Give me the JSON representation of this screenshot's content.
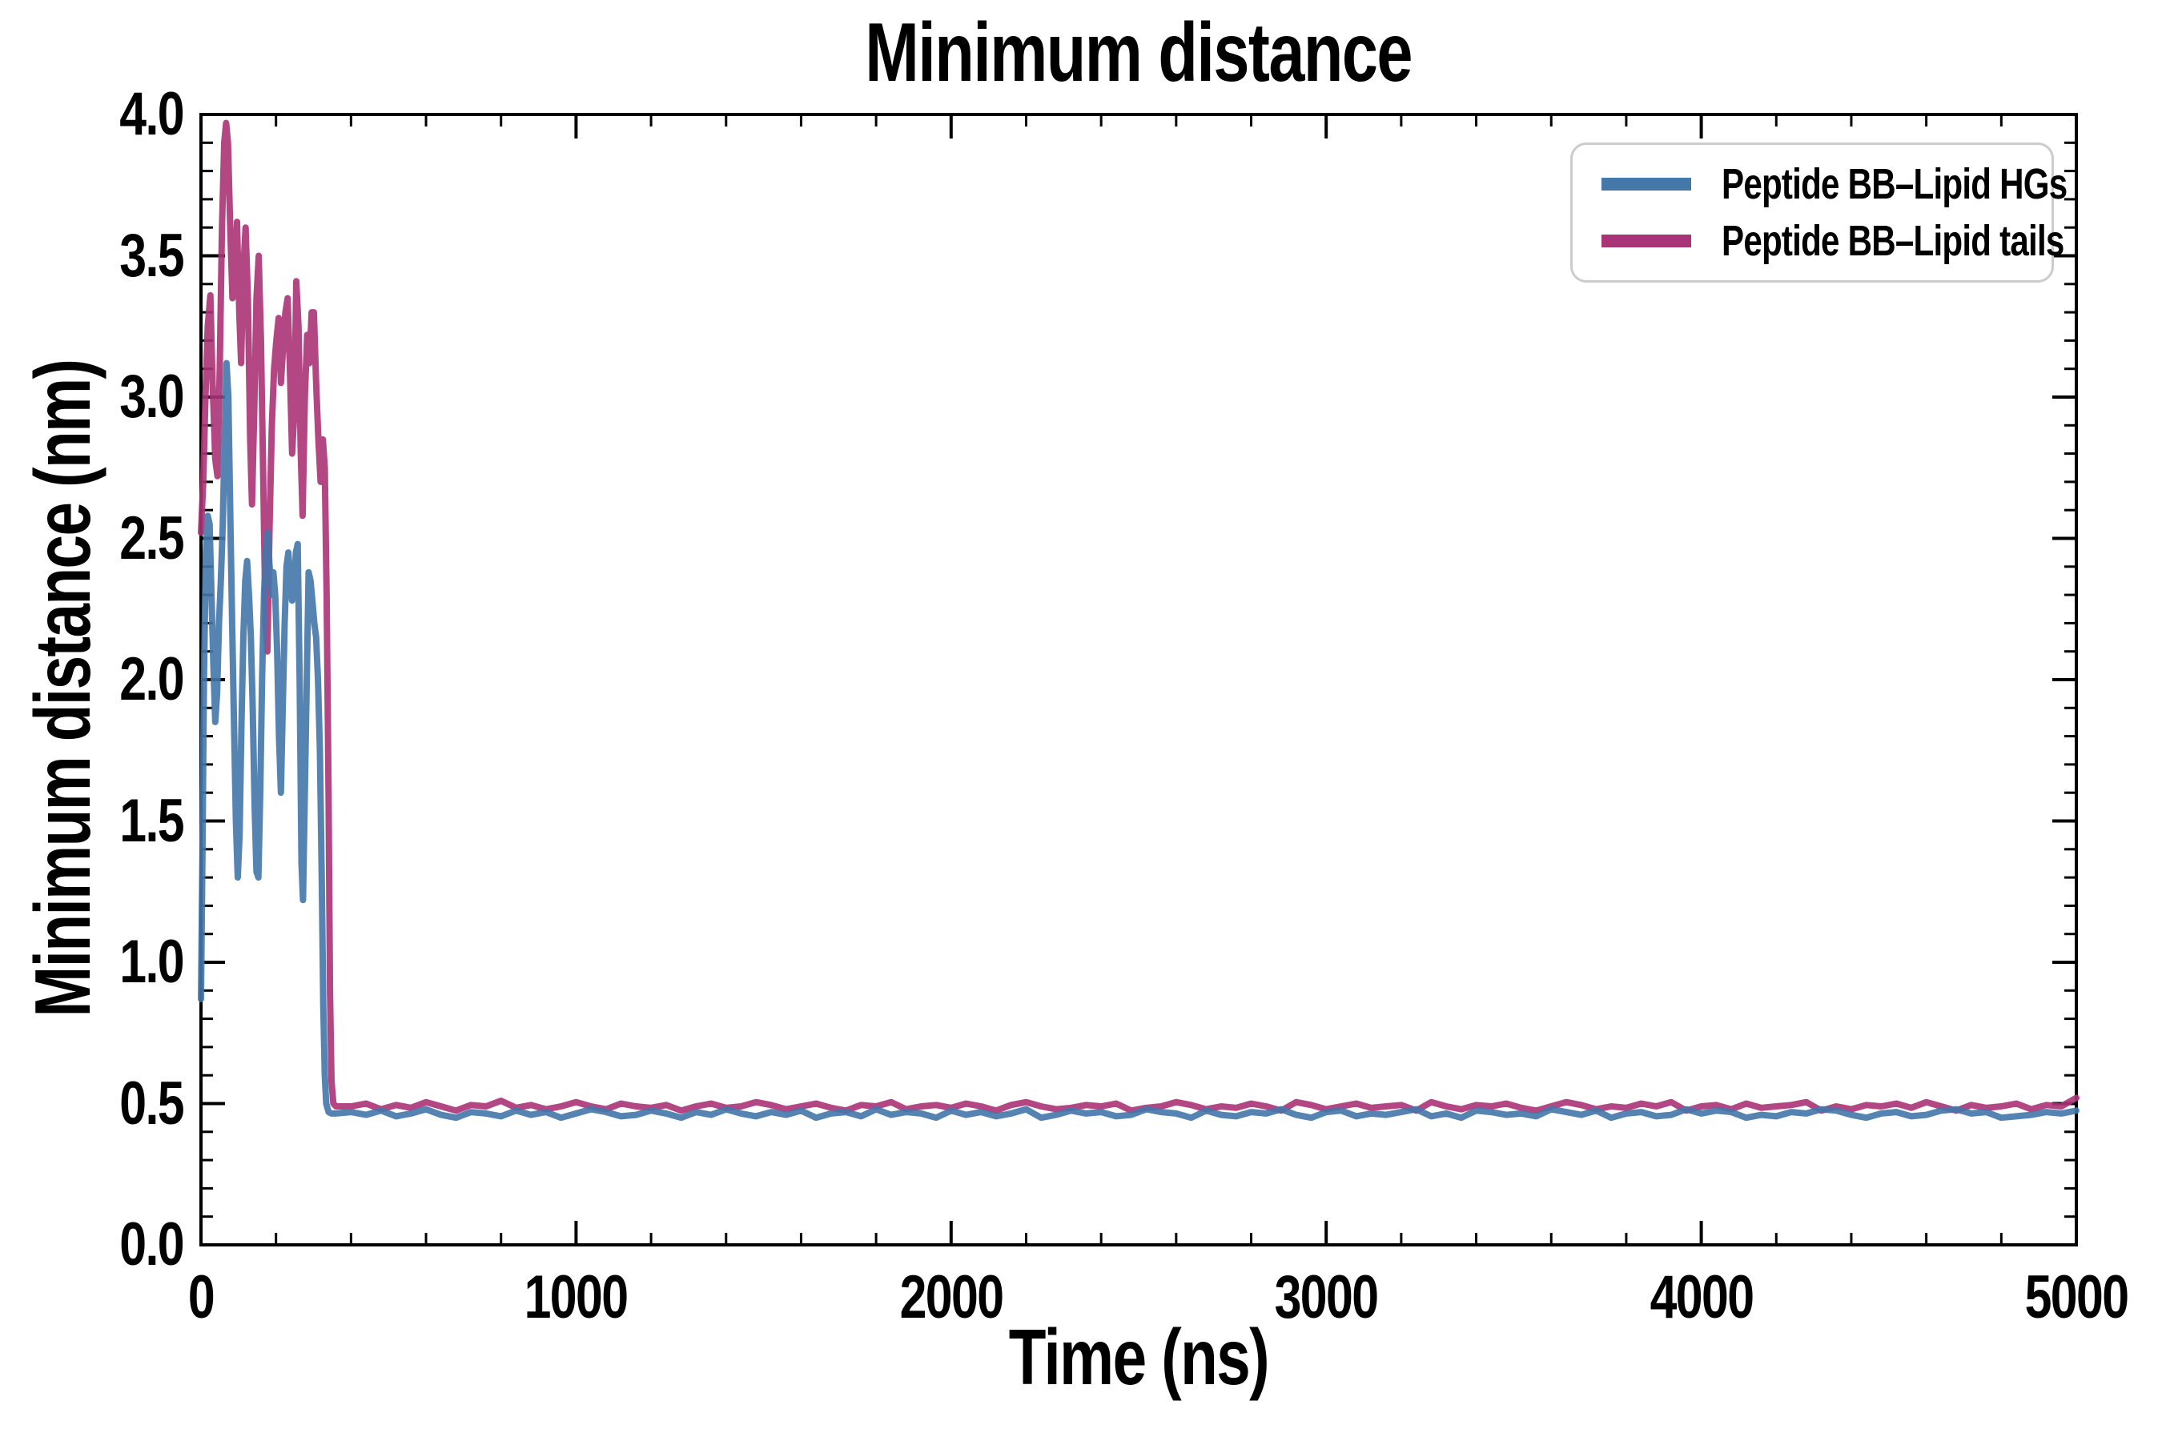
{
  "figure": {
    "background": "#ffffff"
  },
  "chart_data": {
    "type": "line",
    "title": "Minimum distance",
    "xlabel": "Time (ns)",
    "ylabel": "Minimum distance (nm)",
    "xlim": [
      0,
      5000
    ],
    "ylim": [
      0.0,
      4.0
    ],
    "xticks": [
      0,
      1000,
      2000,
      3000,
      4000,
      5000
    ],
    "xtick_labels": [
      "0",
      "1000",
      "2000",
      "3000",
      "4000",
      "5000"
    ],
    "yticks": [
      0.0,
      0.5,
      1.0,
      1.5,
      2.0,
      2.5,
      3.0,
      3.5,
      4.0
    ],
    "ytick_labels": [
      "0.0",
      "0.5",
      "1.0",
      "1.5",
      "2.0",
      "2.5",
      "3.0",
      "3.5",
      "4.0"
    ],
    "x_minor_step": 200,
    "y_minor_step": 0.1,
    "grid": false,
    "tick_direction": "in",
    "line_width": 8,
    "legend": {
      "position": "upper right",
      "border_color": "#cccccc"
    },
    "series": [
      {
        "name": "Peptide BB–Lipid HGs",
        "color": "#4477aa",
        "z": 2,
        "initial_points": [
          [
            0,
            0.87
          ],
          [
            4,
            1.4
          ],
          [
            8,
            2.0
          ],
          [
            13,
            2.45
          ],
          [
            18,
            2.58
          ],
          [
            23,
            2.55
          ],
          [
            28,
            2.3
          ],
          [
            33,
            2.05
          ],
          [
            38,
            1.85
          ],
          [
            43,
            1.95
          ],
          [
            48,
            2.2
          ],
          [
            53,
            2.35
          ],
          [
            58,
            2.55
          ],
          [
            63,
            2.85
          ],
          [
            68,
            3.12
          ],
          [
            73,
            3.0
          ],
          [
            78,
            2.6
          ],
          [
            83,
            2.2
          ],
          [
            88,
            1.85
          ],
          [
            93,
            1.5
          ],
          [
            98,
            1.3
          ],
          [
            103,
            1.45
          ],
          [
            108,
            1.85
          ],
          [
            113,
            2.15
          ],
          [
            118,
            2.35
          ],
          [
            123,
            2.42
          ],
          [
            128,
            2.3
          ],
          [
            133,
            2.15
          ],
          [
            138,
            1.9
          ],
          [
            143,
            1.55
          ],
          [
            148,
            1.32
          ],
          [
            153,
            1.3
          ],
          [
            158,
            1.6
          ],
          [
            163,
            2.0
          ],
          [
            168,
            2.3
          ],
          [
            173,
            2.45
          ],
          [
            178,
            2.52
          ],
          [
            183,
            2.4
          ],
          [
            188,
            2.3
          ],
          [
            193,
            2.38
          ],
          [
            198,
            2.3
          ],
          [
            203,
            2.1
          ],
          [
            208,
            1.8
          ],
          [
            213,
            1.6
          ],
          [
            218,
            1.9
          ],
          [
            223,
            2.2
          ],
          [
            228,
            2.4
          ],
          [
            233,
            2.45
          ],
          [
            238,
            2.35
          ],
          [
            243,
            2.28
          ],
          [
            248,
            2.32
          ],
          [
            253,
            2.45
          ],
          [
            258,
            2.48
          ],
          [
            263,
            2.0
          ],
          [
            268,
            1.35
          ],
          [
            272,
            1.22
          ],
          [
            277,
            1.6
          ],
          [
            282,
            2.0
          ],
          [
            287,
            2.38
          ],
          [
            292,
            2.35
          ],
          [
            297,
            2.28
          ],
          [
            302,
            2.2
          ],
          [
            307,
            2.15
          ],
          [
            312,
            2.0
          ],
          [
            317,
            1.75
          ],
          [
            322,
            1.3
          ],
          [
            326,
            0.85
          ],
          [
            330,
            0.6
          ],
          [
            334,
            0.5
          ],
          [
            340,
            0.47
          ],
          [
            348,
            0.465
          ],
          [
            360,
            0.465
          ]
        ],
        "flat_segment": {
          "t0": 400,
          "dt": 40,
          "values": [
            0.47,
            0.46,
            0.475,
            0.455,
            0.465,
            0.48,
            0.46,
            0.45,
            0.47,
            0.465,
            0.455,
            0.475,
            0.46,
            0.47,
            0.45,
            0.465,
            0.48,
            0.47,
            0.455,
            0.46,
            0.475,
            0.465,
            0.45,
            0.47,
            0.46,
            0.48,
            0.465,
            0.455,
            0.47,
            0.46,
            0.475,
            0.45,
            0.465,
            0.47,
            0.455,
            0.48,
            0.46,
            0.47,
            0.465,
            0.45,
            0.475,
            0.46,
            0.47,
            0.455,
            0.465,
            0.48,
            0.45,
            0.46,
            0.475,
            0.465,
            0.47,
            0.455,
            0.46,
            0.48,
            0.47,
            0.465,
            0.45,
            0.475,
            0.46,
            0.455,
            0.47,
            0.465,
            0.48,
            0.46,
            0.45,
            0.47,
            0.475,
            0.455,
            0.465,
            0.46,
            0.47,
            0.48,
            0.455,
            0.465,
            0.45,
            0.475,
            0.47,
            0.46,
            0.465,
            0.455,
            0.48,
            0.47,
            0.46,
            0.475,
            0.45,
            0.465,
            0.47,
            0.455,
            0.46,
            0.48,
            0.465,
            0.475,
            0.47,
            0.45,
            0.46,
            0.455,
            0.47,
            0.465,
            0.48,
            0.475,
            0.46,
            0.45,
            0.465,
            0.47,
            0.455,
            0.46,
            0.475,
            0.48,
            0.465,
            0.47,
            0.45,
            0.455,
            0.46,
            0.47,
            0.465,
            0.475
          ]
        }
      },
      {
        "name": "Peptide BB–Lipid tails",
        "color": "#aa3377",
        "z": 1,
        "initial_points": [
          [
            0,
            2.52
          ],
          [
            6,
            2.7
          ],
          [
            12,
            3.0
          ],
          [
            18,
            3.25
          ],
          [
            25,
            3.36
          ],
          [
            31,
            3.05
          ],
          [
            38,
            2.78
          ],
          [
            44,
            2.72
          ],
          [
            50,
            3.1
          ],
          [
            56,
            3.6
          ],
          [
            62,
            3.9
          ],
          [
            67,
            3.97
          ],
          [
            72,
            3.9
          ],
          [
            78,
            3.6
          ],
          [
            84,
            3.35
          ],
          [
            90,
            3.45
          ],
          [
            96,
            3.62
          ],
          [
            102,
            3.3
          ],
          [
            107,
            3.12
          ],
          [
            113,
            3.45
          ],
          [
            119,
            3.6
          ],
          [
            125,
            3.35
          ],
          [
            131,
            2.85
          ],
          [
            136,
            2.62
          ],
          [
            142,
            2.95
          ],
          [
            148,
            3.35
          ],
          [
            154,
            3.5
          ],
          [
            160,
            3.2
          ],
          [
            166,
            2.7
          ],
          [
            172,
            2.2
          ],
          [
            177,
            2.1
          ],
          [
            183,
            2.55
          ],
          [
            189,
            2.9
          ],
          [
            195,
            3.1
          ],
          [
            201,
            3.2
          ],
          [
            207,
            3.28
          ],
          [
            213,
            3.05
          ],
          [
            219,
            3.18
          ],
          [
            225,
            3.3
          ],
          [
            231,
            3.35
          ],
          [
            237,
            3.1
          ],
          [
            243,
            2.8
          ],
          [
            249,
            2.95
          ],
          [
            254,
            3.41
          ],
          [
            260,
            3.25
          ],
          [
            266,
            2.8
          ],
          [
            271,
            2.58
          ],
          [
            277,
            3.0
          ],
          [
            283,
            3.22
          ],
          [
            289,
            3.12
          ],
          [
            295,
            3.3
          ],
          [
            301,
            3.3
          ],
          [
            307,
            3.05
          ],
          [
            313,
            2.85
          ],
          [
            319,
            2.7
          ],
          [
            325,
            2.85
          ],
          [
            330,
            2.75
          ],
          [
            335,
            2.3
          ],
          [
            340,
            1.6
          ],
          [
            344,
            0.9
          ],
          [
            348,
            0.58
          ],
          [
            353,
            0.5
          ],
          [
            360,
            0.49
          ]
        ],
        "flat_segment": {
          "t0": 400,
          "dt": 40,
          "values": [
            0.49,
            0.5,
            0.48,
            0.495,
            0.485,
            0.505,
            0.49,
            0.475,
            0.495,
            0.49,
            0.51,
            0.485,
            0.495,
            0.48,
            0.49,
            0.505,
            0.49,
            0.48,
            0.5,
            0.49,
            0.485,
            0.495,
            0.475,
            0.49,
            0.5,
            0.485,
            0.49,
            0.505,
            0.495,
            0.48,
            0.49,
            0.5,
            0.485,
            0.475,
            0.495,
            0.49,
            0.505,
            0.48,
            0.49,
            0.495,
            0.485,
            0.5,
            0.49,
            0.475,
            0.495,
            0.505,
            0.49,
            0.48,
            0.485,
            0.495,
            0.49,
            0.5,
            0.475,
            0.485,
            0.49,
            0.505,
            0.495,
            0.48,
            0.49,
            0.485,
            0.5,
            0.49,
            0.475,
            0.505,
            0.495,
            0.48,
            0.49,
            0.5,
            0.485,
            0.49,
            0.495,
            0.475,
            0.505,
            0.49,
            0.48,
            0.495,
            0.49,
            0.5,
            0.485,
            0.475,
            0.49,
            0.505,
            0.495,
            0.48,
            0.49,
            0.485,
            0.5,
            0.49,
            0.505,
            0.475,
            0.49,
            0.495,
            0.48,
            0.5,
            0.485,
            0.49,
            0.495,
            0.505,
            0.475,
            0.49,
            0.48,
            0.495,
            0.49,
            0.5,
            0.485,
            0.505,
            0.49,
            0.475,
            0.495,
            0.485,
            0.49,
            0.5,
            0.48,
            0.495,
            0.49,
            0.52
          ]
        }
      }
    ]
  }
}
